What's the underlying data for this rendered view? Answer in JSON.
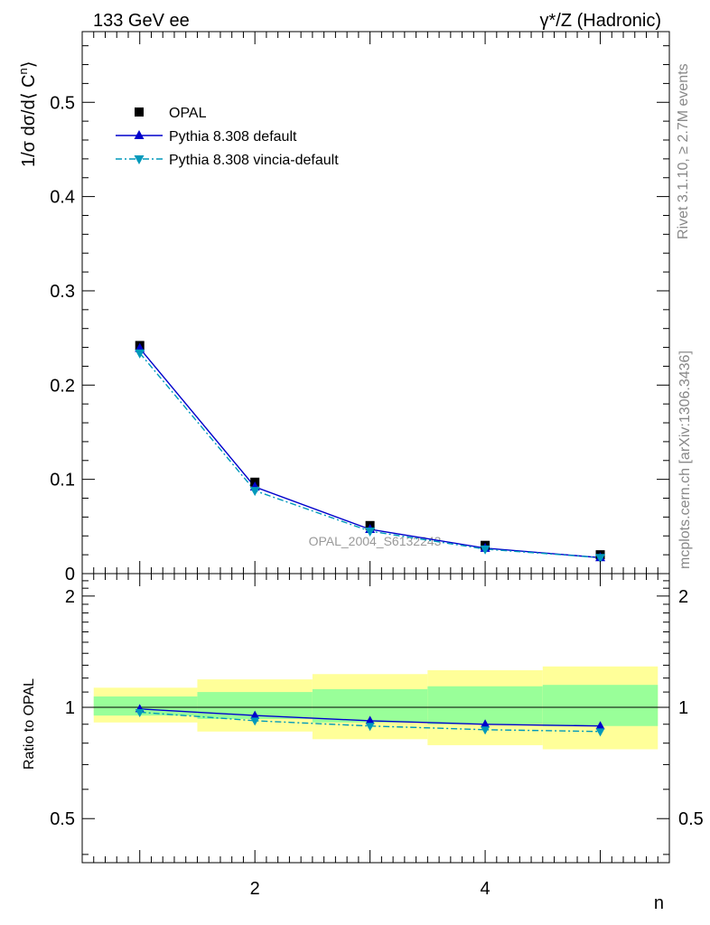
{
  "header": {
    "left": "133 GeV ee",
    "right": "γ*/Z (Hadronic)"
  },
  "side_labels": {
    "rivet": "Rivet 3.1.10, ≥ 2.7M events",
    "mcplots": "mcplots.cern.ch [arXiv:1306.3436]"
  },
  "watermark": "OPAL_2004_S6132243",
  "colors": {
    "data": "#000000",
    "default": "#0000cc",
    "vincia": "#0099bb",
    "band_inner": "#99ff99",
    "band_outer": "#ffff99"
  },
  "chart_data": [
    {
      "type": "line",
      "ylabel_parts": {
        "pre": "1/σ dσ/d⟨ C",
        "sup": "n",
        "post": "⟩"
      },
      "ylim": [
        0,
        0.575
      ],
      "xlim": [
        0.5,
        5.6
      ],
      "yticks": [
        {
          "v": 0.0,
          "label": "0"
        },
        {
          "v": 0.1,
          "label": "0.1"
        },
        {
          "v": 0.2,
          "label": "0.2"
        },
        {
          "v": 0.3,
          "label": "0.3"
        },
        {
          "v": 0.4,
          "label": "0.4"
        },
        {
          "v": 0.5,
          "label": "0.5"
        }
      ],
      "x": [
        1,
        2,
        3,
        4,
        5
      ],
      "legend_position": "top-left",
      "series": [
        {
          "name": "OPAL",
          "key": "opal",
          "marker": "square",
          "values": [
            0.242,
            0.097,
            0.051,
            0.03,
            0.02
          ]
        },
        {
          "name": "Pythia 8.308 default",
          "key": "default",
          "marker": "triangle-up",
          "line": "solid",
          "values": [
            0.239,
            0.092,
            0.047,
            0.027,
            0.017
          ]
        },
        {
          "name": "Pythia 8.308 vincia-default",
          "key": "vincia",
          "marker": "triangle-down",
          "line": "dashdot",
          "values": [
            0.234,
            0.088,
            0.045,
            0.026,
            0.017
          ]
        }
      ]
    },
    {
      "type": "line",
      "ylabel": "Ratio to OPAL",
      "xlabel": "n",
      "ylim": [
        0.38,
        2.3
      ],
      "xlim": [
        0.5,
        5.6
      ],
      "log_y": true,
      "yticks": [
        {
          "v": 0.5,
          "label": "0.5"
        },
        {
          "v": 1,
          "label": "1"
        },
        {
          "v": 2,
          "label": "2"
        }
      ],
      "xticks": [
        {
          "v": 2,
          "label": "2"
        },
        {
          "v": 4,
          "label": "4"
        }
      ],
      "bands": [
        {
          "x0": 0.6,
          "x1": 1.5,
          "inner": [
            0.95,
            1.07
          ],
          "outer": [
            0.91,
            1.13
          ]
        },
        {
          "x0": 1.5,
          "x1": 2.5,
          "inner": [
            0.93,
            1.1
          ],
          "outer": [
            0.86,
            1.19
          ]
        },
        {
          "x0": 2.5,
          "x1": 3.5,
          "inner": [
            0.91,
            1.12
          ],
          "outer": [
            0.82,
            1.23
          ]
        },
        {
          "x0": 3.5,
          "x1": 4.5,
          "inner": [
            0.9,
            1.14
          ],
          "outer": [
            0.79,
            1.26
          ]
        },
        {
          "x0": 4.5,
          "x1": 5.5,
          "inner": [
            0.89,
            1.15
          ],
          "outer": [
            0.77,
            1.29
          ]
        }
      ],
      "x": [
        1,
        2,
        3,
        4,
        5
      ],
      "series": [
        {
          "name": "Pythia 8.308 default",
          "key": "default",
          "values": [
            0.99,
            0.95,
            0.92,
            0.9,
            0.89
          ]
        },
        {
          "name": "Pythia 8.308 vincia-default",
          "key": "vincia",
          "values": [
            0.97,
            0.92,
            0.89,
            0.87,
            0.86
          ]
        }
      ]
    }
  ]
}
